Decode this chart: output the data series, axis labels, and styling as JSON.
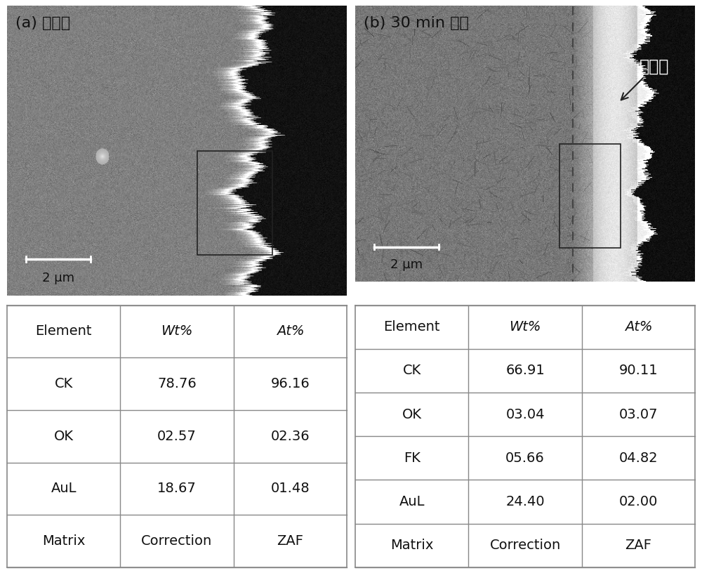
{
  "fig_width": 10.0,
  "fig_height": 8.16,
  "dpi": 100,
  "panel_a_label": "(a) 未氟化",
  "panel_b_label": "(b) 30 min 氟化",
  "scale_bar_text": "2 μm",
  "fluoride_layer_label": "氟化层",
  "table_a": {
    "headers": [
      "Element",
      "Wt%",
      "At%"
    ],
    "rows": [
      [
        "CK",
        "78.76",
        "96.16"
      ],
      [
        "OK",
        "02.57",
        "02.36"
      ],
      [
        "AuL",
        "18.67",
        "01.48"
      ],
      [
        "Matrix",
        "Correction",
        "ZAF"
      ]
    ]
  },
  "table_b": {
    "headers": [
      "Element",
      "Wt%",
      "At%"
    ],
    "rows": [
      [
        "CK",
        "66.91",
        "90.11"
      ],
      [
        "OK",
        "03.04",
        "03.07"
      ],
      [
        "FK",
        "05.66",
        "04.82"
      ],
      [
        "AuL",
        "24.40",
        "02.00"
      ],
      [
        "Matrix",
        "Correction",
        "ZAF"
      ]
    ]
  },
  "bg_color": "#ffffff",
  "table_bg": "#ffffff",
  "table_line_color": "#888888",
  "text_color": "#000000",
  "label_color": "#111111",
  "scale_bar_color": "#ffffff",
  "scale_text_color": "#111111"
}
